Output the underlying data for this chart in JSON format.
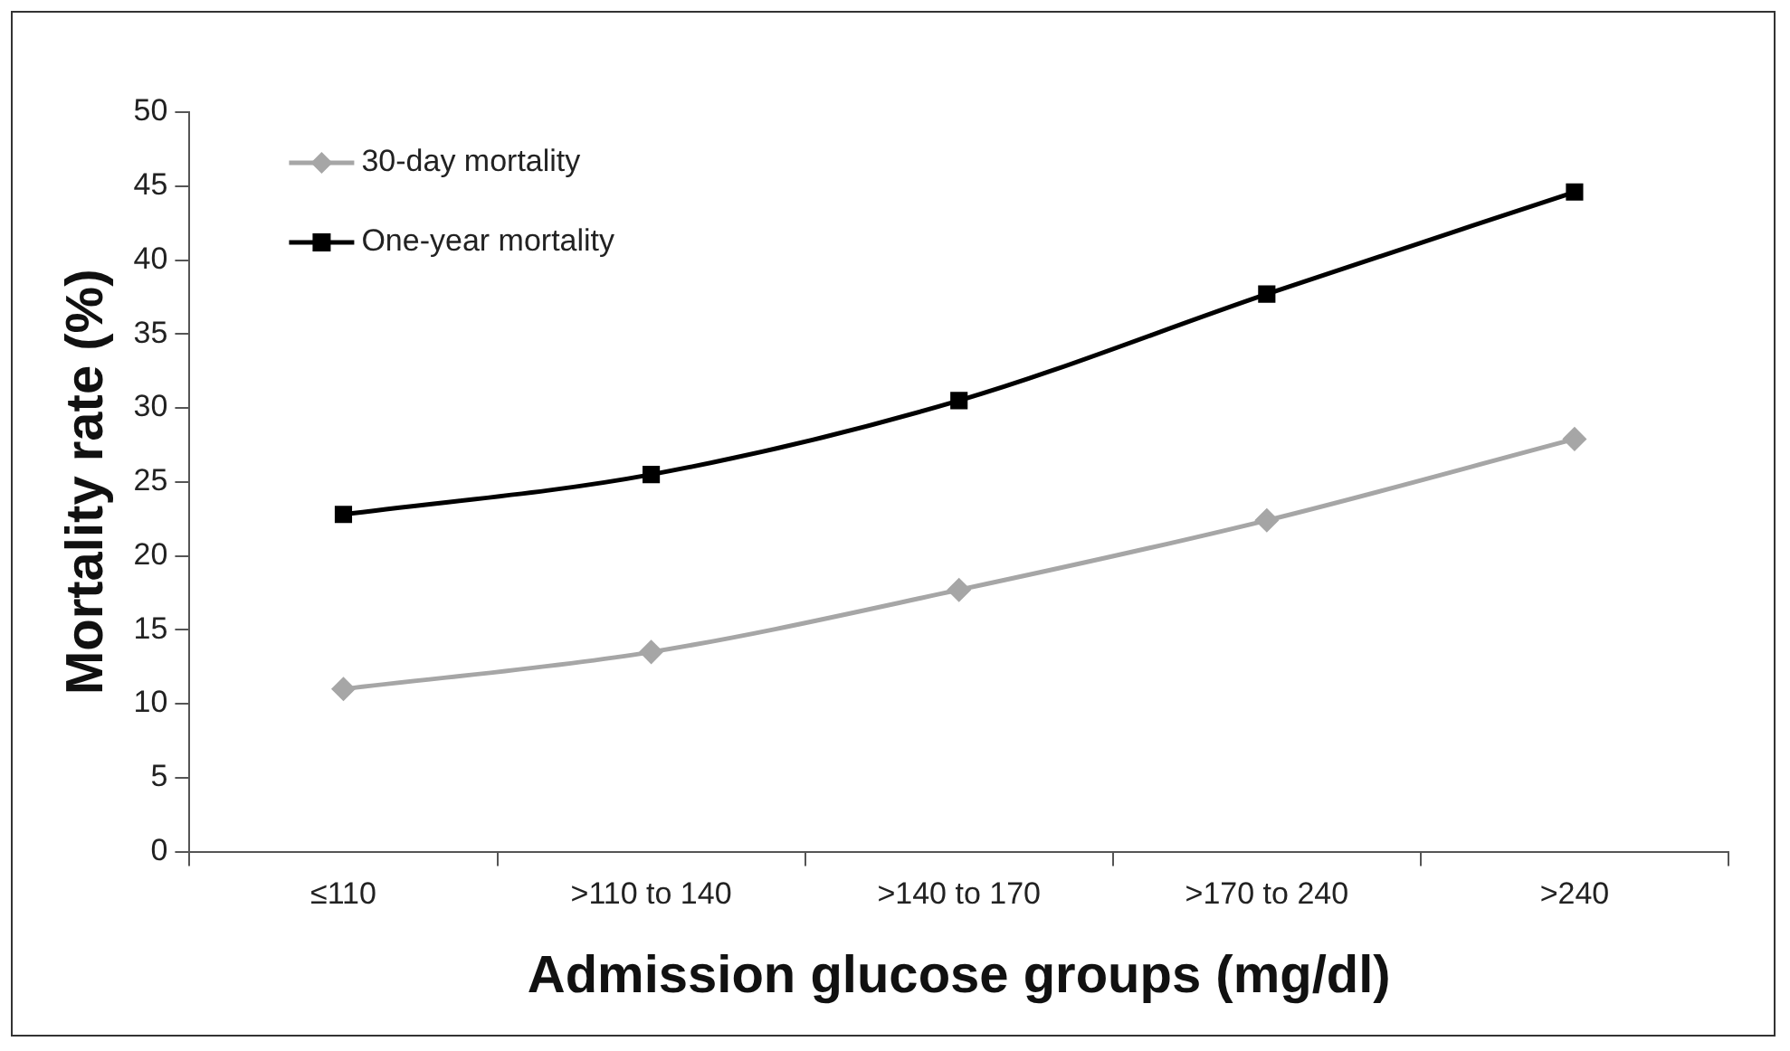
{
  "chart_data": {
    "type": "line",
    "xlabel": "Admission glucose groups (mg/dl)",
    "ylabel": "Mortality rate (%)",
    "categories": [
      "≤110",
      ">110 to 140",
      ">140 to 170",
      ">170 to 240",
      ">240"
    ],
    "series": [
      {
        "name": "30-day mortality",
        "color": "#a6a6a6",
        "marker": "diamond",
        "values": [
          11,
          13.5,
          17.7,
          22.4,
          27.9
        ]
      },
      {
        "name": "One-year mortality",
        "color": "#000000",
        "marker": "square",
        "values": [
          22.8,
          25.5,
          30.5,
          37.7,
          44.6
        ]
      }
    ],
    "ylim": [
      0,
      50
    ],
    "yticks": [
      0,
      5,
      10,
      15,
      20,
      25,
      30,
      35,
      40,
      45,
      50
    ],
    "grid": false,
    "legend": "top left"
  }
}
